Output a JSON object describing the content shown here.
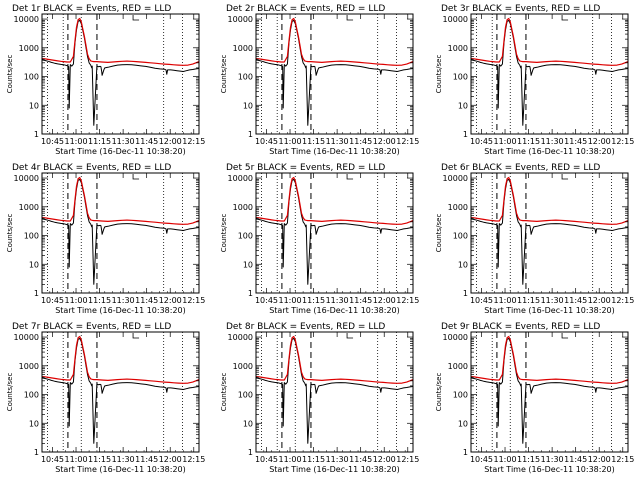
{
  "chart_data": [
    {
      "type": "line",
      "title": "Det 1r BLACK = Events, RED = LLD"
    },
    {
      "type": "line",
      "title": "Det 2r BLACK = Events, RED = LLD"
    },
    {
      "type": "line",
      "title": "Det 3r BLACK = Events, RED = LLD"
    },
    {
      "type": "line",
      "title": "Det 4r BLACK = Events, RED = LLD"
    },
    {
      "type": "line",
      "title": "Det 5r BLACK = Events, RED = LLD"
    },
    {
      "type": "line",
      "title": "Det 6r BLACK = Events, RED = LLD"
    },
    {
      "type": "line",
      "title": "Det 7r BLACK = Events, RED = LLD"
    },
    {
      "type": "line",
      "title": "Det 8r BLACK = Events, RED = LLD"
    },
    {
      "type": "line",
      "title": "Det 9r BLACK = Events, RED = LLD"
    }
  ],
  "shared": {
    "xlabel": "Start Time (16-Dec-11 10:38:20)",
    "ylabel": "Counts/sec",
    "x_start_time": "10:38:20",
    "xlim_minutes": [
      0,
      100
    ],
    "x_ticks": [
      {
        "label": "10:45",
        "minute": 6.67
      },
      {
        "label": "11:00",
        "minute": 21.67
      },
      {
        "label": "11:15",
        "minute": 36.67
      },
      {
        "label": "11:30",
        "minute": 51.67
      },
      {
        "label": "11:45",
        "minute": 66.67
      },
      {
        "label": "12:00",
        "minute": 81.67
      },
      {
        "label": "12:15",
        "minute": 96.67
      }
    ],
    "ylim": [
      1,
      15000
    ],
    "y_scale": "log",
    "y_ticks": [
      {
        "label": "1",
        "value": 1
      },
      {
        "label": "10",
        "value": 10
      },
      {
        "label": "100",
        "value": 100
      },
      {
        "label": "1000",
        "value": 1000
      },
      {
        "label": "10000",
        "value": 10000
      }
    ],
    "dotted_lines_minutes": [
      3.5,
      13.5,
      25.0,
      77.5,
      89.5
    ],
    "dashed_lines_minutes": [
      16.5,
      35.0
    ],
    "series": [
      {
        "name": "Events",
        "color": "#000000",
        "x": [
          0,
          2,
          4,
          6,
          8,
          10,
          12,
          14,
          16,
          17,
          17.3,
          18,
          19,
          20,
          21,
          22,
          23,
          24,
          25,
          26,
          27,
          28,
          29,
          30,
          31,
          31.7,
          32,
          33,
          35,
          36,
          37,
          37.5,
          38,
          38.3,
          39.5,
          40,
          42,
          45,
          48,
          51,
          54,
          57,
          60,
          63,
          66,
          69,
          72,
          75,
          78,
          79,
          79.5,
          80,
          82,
          84,
          86,
          88,
          90,
          92,
          94,
          96,
          98,
          100
        ],
        "values": [
          380,
          360,
          340,
          310,
          290,
          275,
          265,
          255,
          240,
          220,
          8,
          260,
          230,
          270,
          1500,
          4200,
          8300,
          9000,
          7000,
          4000,
          2200,
          1000,
          500,
          300,
          250,
          200,
          230,
          2,
          230,
          220,
          225,
          220,
          150,
          110,
          175,
          200,
          210,
          230,
          250,
          255,
          260,
          255,
          245,
          235,
          225,
          210,
          195,
          185,
          180,
          170,
          120,
          170,
          170,
          165,
          160,
          155,
          150,
          160,
          170,
          175,
          185,
          190
        ]
      },
      {
        "name": "LLD",
        "color": "#dd0000",
        "x": [
          0,
          2,
          4,
          6,
          8,
          10,
          12,
          14,
          16,
          18,
          20,
          21,
          22,
          23,
          24,
          25,
          26,
          27,
          28,
          29,
          30,
          31,
          32,
          33,
          35,
          38,
          42,
          45,
          48,
          51,
          54,
          57,
          60,
          63,
          66,
          69,
          72,
          75,
          78,
          81,
          84,
          87,
          90,
          93,
          96,
          98,
          100
        ],
        "values": [
          420,
          410,
          395,
          380,
          365,
          350,
          340,
          330,
          320,
          320,
          500,
          1800,
          5200,
          9500,
          10500,
          8000,
          4500,
          2500,
          1200,
          600,
          420,
          350,
          340,
          330,
          330,
          320,
          310,
          320,
          330,
          340,
          345,
          340,
          330,
          320,
          310,
          300,
          290,
          280,
          270,
          265,
          255,
          250,
          245,
          250,
          270,
          300,
          330
        ]
      }
    ]
  }
}
